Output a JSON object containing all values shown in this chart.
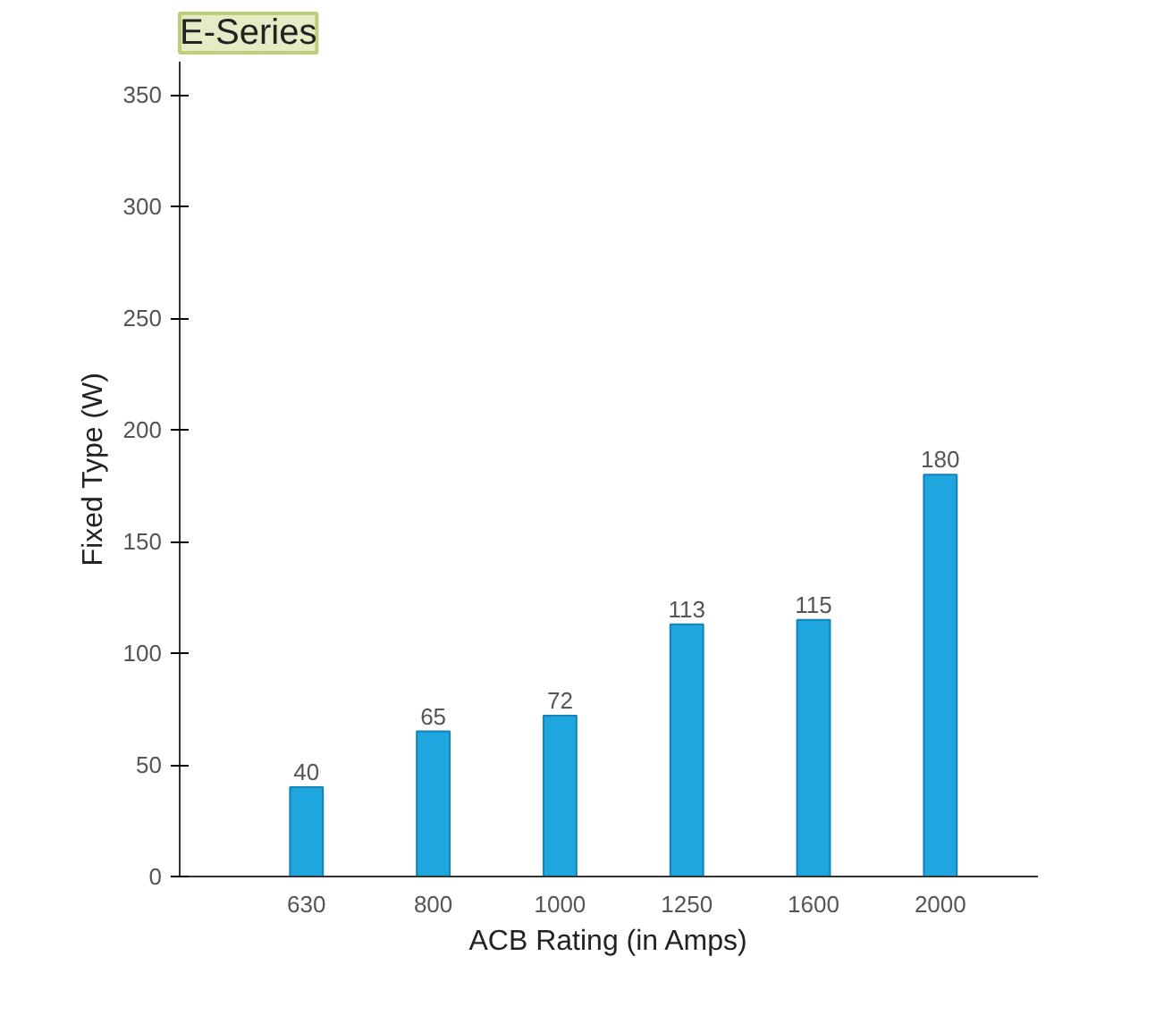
{
  "chart_data": {
    "type": "bar",
    "title": "E-Series",
    "categories": [
      "630",
      "800",
      "1000",
      "1250",
      "1600",
      "2000"
    ],
    "values": [
      40,
      65,
      72,
      113,
      115,
      180
    ],
    "color": "#1fa6de",
    "xlabel": "ACB Rating (in Amps)",
    "ylabel": "Fixed Type (W)",
    "ylim": [
      0,
      365
    ],
    "yticks": [
      0,
      50,
      100,
      150,
      200,
      250,
      300,
      350
    ],
    "data_labels": true,
    "grid": false
  }
}
